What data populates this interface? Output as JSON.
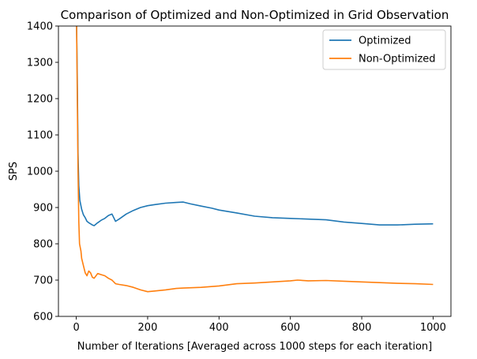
{
  "chart_data": {
    "type": "line",
    "title": "Comparison of Optimized and Non-Optimized in Grid Observation",
    "xlabel": "Number of Iterations [Averaged across 1000 steps for each iteration]",
    "ylabel": "SPS",
    "xlim": [
      -50,
      1050
    ],
    "ylim": [
      600,
      1400
    ],
    "xticks": [
      0,
      200,
      400,
      600,
      800,
      1000
    ],
    "yticks": [
      600,
      700,
      800,
      900,
      1000,
      1100,
      1200,
      1300,
      1400
    ],
    "legend_position": "top-right",
    "series": [
      {
        "name": "Optimized",
        "color": "#1f77b4",
        "x": [
          1,
          3,
          5,
          7,
          10,
          15,
          20,
          25,
          30,
          35,
          40,
          45,
          50,
          60,
          70,
          80,
          90,
          100,
          110,
          120,
          140,
          160,
          180,
          200,
          220,
          250,
          280,
          300,
          320,
          350,
          380,
          400,
          450,
          500,
          550,
          600,
          650,
          700,
          750,
          800,
          850,
          900,
          950,
          1000
        ],
        "y": [
          1400,
          1250,
          1050,
          960,
          920,
          895,
          880,
          872,
          862,
          858,
          855,
          852,
          850,
          858,
          865,
          870,
          878,
          882,
          862,
          868,
          882,
          892,
          900,
          905,
          908,
          912,
          914,
          915,
          910,
          904,
          898,
          893,
          885,
          876,
          872,
          870,
          868,
          866,
          860,
          856,
          852,
          852,
          854,
          855
        ]
      },
      {
        "name": "Non-Optimized",
        "color": "#ff7f0e",
        "x": [
          1,
          3,
          5,
          7,
          9,
          11,
          13,
          15,
          20,
          25,
          30,
          35,
          40,
          45,
          50,
          60,
          70,
          80,
          90,
          100,
          110,
          120,
          140,
          160,
          180,
          200,
          220,
          250,
          280,
          300,
          350,
          400,
          450,
          500,
          550,
          600,
          620,
          650,
          700,
          750,
          800,
          850,
          900,
          950,
          1000
        ],
        "y": [
          1400,
          1200,
          1000,
          860,
          800,
          790,
          780,
          760,
          740,
          720,
          712,
          725,
          720,
          708,
          705,
          718,
          715,
          712,
          705,
          700,
          690,
          688,
          685,
          680,
          673,
          668,
          670,
          673,
          677,
          678,
          680,
          684,
          690,
          692,
          695,
          698,
          700,
          698,
          699,
          697,
          695,
          693,
          691,
          690,
          688
        ]
      }
    ]
  }
}
